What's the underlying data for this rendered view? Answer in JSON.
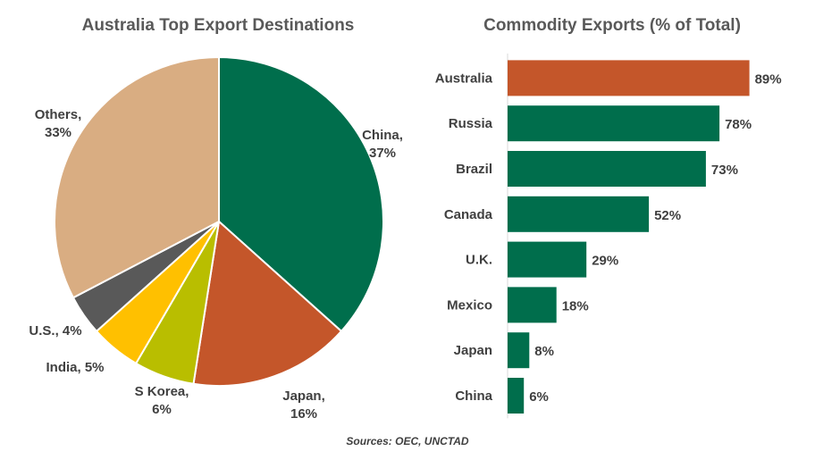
{
  "chart_data": [
    {
      "type": "pie",
      "title": "Australia Top Export Destinations",
      "slices": [
        {
          "label": "China,",
          "value_label": "37%",
          "value": 37,
          "color": "#006E4C"
        },
        {
          "label": "Japan,",
          "value_label": "16%",
          "value": 16,
          "color": "#C4562A"
        },
        {
          "label": "S Korea,",
          "value_label": "6%",
          "value": 6,
          "color": "#B9BE00"
        },
        {
          "label": "India, 5%",
          "value_label": "",
          "value": 5,
          "color": "#FFC000"
        },
        {
          "label": "U.S., 4%",
          "value_label": "",
          "value": 4,
          "color": "#595959"
        },
        {
          "label": "Others,",
          "value_label": "33%",
          "value": 33,
          "color": "#D9AD82"
        }
      ]
    },
    {
      "type": "bar",
      "orientation": "horizontal",
      "title": "Commodity Exports (% of Total)",
      "categories": [
        "Australia",
        "Russia",
        "Brazil",
        "Canada",
        "U.K.",
        "Mexico",
        "Japan",
        "China"
      ],
      "values": [
        89,
        78,
        73,
        52,
        29,
        18,
        8,
        6
      ],
      "value_labels": [
        "89%",
        "78%",
        "73%",
        "52%",
        "29%",
        "18%",
        "8%",
        "6%"
      ],
      "highlight_color": "#C4562A",
      "bar_color": "#006E4C",
      "xlim": [
        0,
        100
      ],
      "grid": false
    }
  ],
  "footer": {
    "source": "Sources: OEC, UNCTAD"
  }
}
